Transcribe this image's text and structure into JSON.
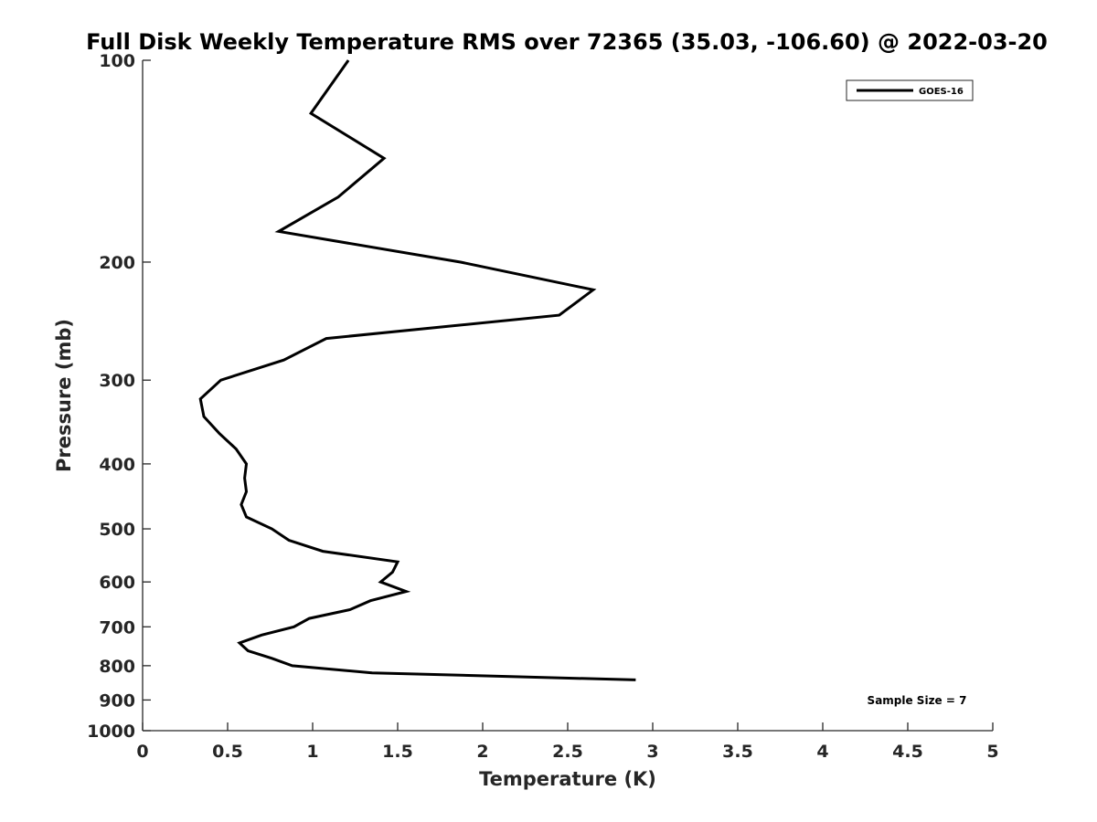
{
  "chart_data": {
    "type": "line",
    "title": "Full Disk Weekly Temperature RMS over 72365 (35.03, -106.60) @ 2022-03-20",
    "xlabel": "Temperature (K)",
    "ylabel": "Pressure (mb)",
    "xlim": [
      0,
      5
    ],
    "ylim": [
      100,
      1000
    ],
    "y_scale": "log",
    "y_reversed": true,
    "x_ticks": [
      "0",
      "0.5",
      "1",
      "1.5",
      "2",
      "2.5",
      "3",
      "3.5",
      "4",
      "4.5",
      "5"
    ],
    "y_ticks": [
      "100",
      "200",
      "300",
      "400",
      "500",
      "600",
      "700",
      "800",
      "900",
      "1000"
    ],
    "grid": false,
    "legend_position": "top-right",
    "annotation": "Sample Size = 7",
    "series": [
      {
        "name": "GOES-16",
        "color": "#000000",
        "points": [
          {
            "t": 1.21,
            "p": 100
          },
          {
            "t": 0.99,
            "p": 120
          },
          {
            "t": 1.42,
            "p": 140
          },
          {
            "t": 1.15,
            "p": 160
          },
          {
            "t": 0.8,
            "p": 180
          },
          {
            "t": 1.87,
            "p": 200
          },
          {
            "t": 2.65,
            "p": 220
          },
          {
            "t": 2.45,
            "p": 240
          },
          {
            "t": 1.08,
            "p": 260
          },
          {
            "t": 0.83,
            "p": 280
          },
          {
            "t": 0.46,
            "p": 300
          },
          {
            "t": 0.34,
            "p": 320
          },
          {
            "t": 0.36,
            "p": 340
          },
          {
            "t": 0.45,
            "p": 360
          },
          {
            "t": 0.55,
            "p": 380
          },
          {
            "t": 0.61,
            "p": 400
          },
          {
            "t": 0.6,
            "p": 420
          },
          {
            "t": 0.61,
            "p": 440
          },
          {
            "t": 0.58,
            "p": 460
          },
          {
            "t": 0.61,
            "p": 480
          },
          {
            "t": 0.76,
            "p": 500
          },
          {
            "t": 0.86,
            "p": 520
          },
          {
            "t": 1.06,
            "p": 540
          },
          {
            "t": 1.5,
            "p": 560
          },
          {
            "t": 1.47,
            "p": 580
          },
          {
            "t": 1.4,
            "p": 600
          },
          {
            "t": 1.55,
            "p": 620
          },
          {
            "t": 1.34,
            "p": 640
          },
          {
            "t": 1.22,
            "p": 660
          },
          {
            "t": 0.98,
            "p": 680
          },
          {
            "t": 0.89,
            "p": 700
          },
          {
            "t": 0.7,
            "p": 720
          },
          {
            "t": 0.57,
            "p": 740
          },
          {
            "t": 0.62,
            "p": 760
          },
          {
            "t": 0.76,
            "p": 780
          },
          {
            "t": 0.88,
            "p": 800
          },
          {
            "t": 1.35,
            "p": 820
          },
          {
            "t": 2.9,
            "p": 840
          }
        ]
      }
    ]
  }
}
